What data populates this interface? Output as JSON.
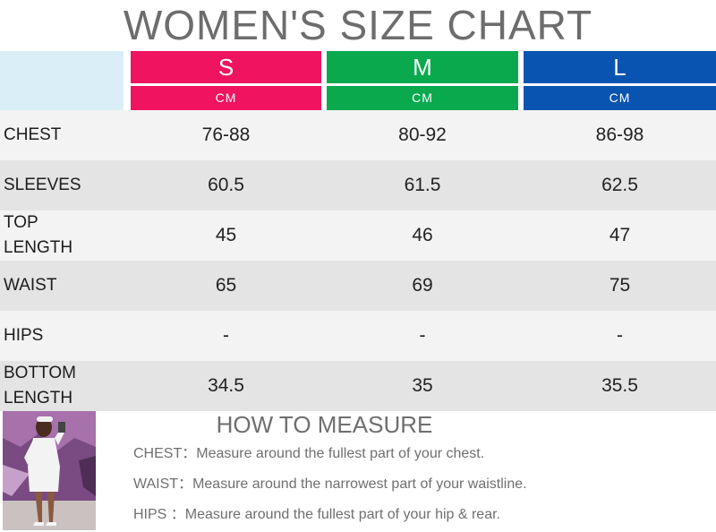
{
  "title": "WOMEN'S SIZE CHART",
  "colors": {
    "S": "#f0135f",
    "M": "#0aa94e",
    "L": "#0a54b1",
    "corner": "#daeef7"
  },
  "sizes": [
    {
      "label": "S",
      "unit": "CM"
    },
    {
      "label": "M",
      "unit": "CM"
    },
    {
      "label": "L",
      "unit": "CM"
    }
  ],
  "rows": [
    {
      "label": "CHEST",
      "values": [
        "76-88",
        "80-92",
        "86-98"
      ]
    },
    {
      "label": "SLEEVES",
      "values": [
        "60.5",
        "61.5",
        "62.5"
      ]
    },
    {
      "label": "TOP LENGTH",
      "values": [
        "45",
        "46",
        "47"
      ]
    },
    {
      "label": "WAIST",
      "values": [
        "65",
        "69",
        "75"
      ]
    },
    {
      "label": "HIPS",
      "values": [
        "-",
        "-",
        "-"
      ]
    },
    {
      "label": "BOTTOM LENGTH",
      "values": [
        "34.5",
        "35",
        "35.5"
      ]
    }
  ],
  "measure": {
    "title": "HOW TO MEASURE",
    "items": [
      {
        "key": "CHEST：",
        "text": "Measure around the fullest part of your chest."
      },
      {
        "key": "WAIST：",
        "text": "Measure around the narrowest part of your waistline."
      },
      {
        "key": "HIPS ：",
        "text": "Measure around the fullest part of your hip & rear."
      }
    ]
  }
}
